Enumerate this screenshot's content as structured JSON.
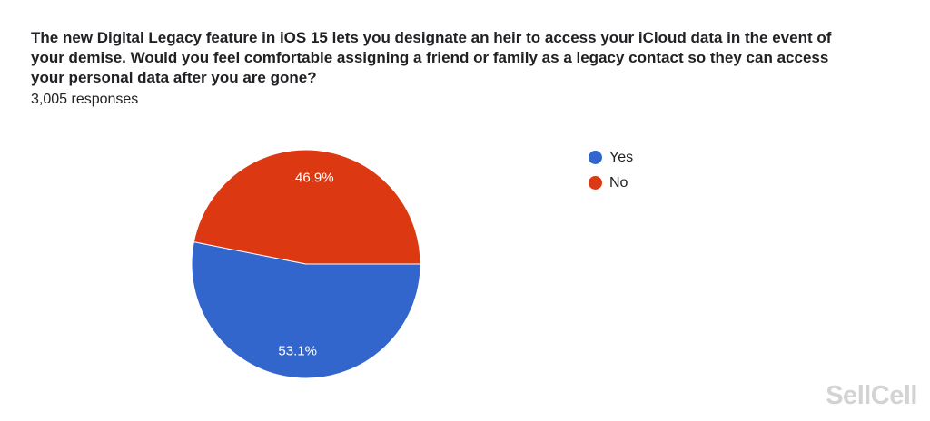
{
  "title": "The new Digital Legacy feature in iOS 15 lets you designate an heir to access your iCloud data in the event of your demise. Would you feel comfortable assigning a friend or family as a legacy contact so they can access your personal data after you are gone?",
  "responses": "3,005 responses",
  "watermark": "SellCell",
  "chart_data": {
    "type": "pie",
    "title": "The new Digital Legacy feature in iOS 15 lets you designate an heir to access your iCloud data in the event of your demise. Would you feel comfortable assigning a friend or family as a legacy contact so they can access your personal data after you are gone?",
    "categories": [
      "Yes",
      "No"
    ],
    "values": [
      53.1,
      46.9
    ],
    "labels": [
      "53.1%",
      "46.9%"
    ],
    "colors": [
      "#3366cc",
      "#dc3912"
    ],
    "legend_position": "right",
    "total_responses": 3005
  }
}
